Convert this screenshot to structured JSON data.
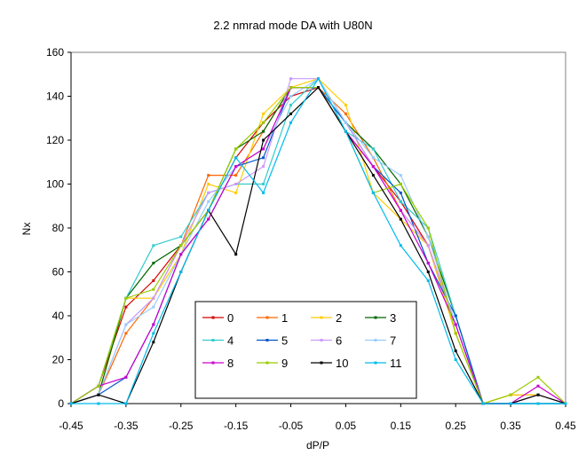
{
  "chart_data": {
    "type": "line",
    "title": "2.2 nmrad mode DA with U80N",
    "xlabel": "dP/P",
    "ylabel": "Nx",
    "xlim": [
      -0.45,
      0.45
    ],
    "ylim": [
      0,
      160
    ],
    "xticks": [
      "-0.45",
      "-0.35",
      "-0.25",
      "-0.15",
      "-0.05",
      "0.05",
      "0.15",
      "0.25",
      "0.35",
      "0.45"
    ],
    "yticks": [
      "0",
      "20",
      "40",
      "60",
      "80",
      "100",
      "120",
      "140",
      "160"
    ],
    "grid": false,
    "legend_position": "bottom-center",
    "x": [
      -0.45,
      -0.4,
      -0.35,
      -0.3,
      -0.25,
      -0.2,
      -0.15,
      -0.1,
      -0.05,
      0.0,
      0.05,
      0.1,
      0.15,
      0.2,
      0.25,
      0.3,
      0.35,
      0.4,
      0.45
    ],
    "series": [
      {
        "name": "0",
        "color": "#d40000",
        "values": [
          0,
          8,
          44,
          56,
          72,
          88,
          112,
          128,
          140,
          144,
          124,
          108,
          92,
          72,
          36,
          0,
          0,
          4,
          0
        ]
      },
      {
        "name": "1",
        "color": "#ff6600",
        "values": [
          0,
          4,
          32,
          48,
          72,
          104,
          104,
          124,
          144,
          144,
          132,
          112,
          88,
          72,
          32,
          0,
          4,
          4,
          0
        ]
      },
      {
        "name": "2",
        "color": "#ffcc00",
        "values": [
          0,
          4,
          48,
          48,
          68,
          100,
          96,
          132,
          144,
          148,
          136,
          96,
          84,
          72,
          32,
          0,
          4,
          4,
          0
        ]
      },
      {
        "name": "3",
        "color": "#006600",
        "values": [
          0,
          4,
          48,
          64,
          72,
          88,
          116,
          124,
          144,
          144,
          128,
          116,
          100,
          76,
          40,
          0,
          0,
          0,
          0
        ]
      },
      {
        "name": "4",
        "color": "#33cccc",
        "values": [
          0,
          8,
          48,
          72,
          76,
          96,
          100,
          100,
          136,
          148,
          124,
          116,
          92,
          80,
          40,
          0,
          0,
          0,
          0
        ]
      },
      {
        "name": "5",
        "color": "#0055cc",
        "values": [
          0,
          4,
          12,
          36,
          68,
          84,
          108,
          112,
          144,
          144,
          128,
          108,
          96,
          64,
          40,
          0,
          0,
          0,
          0
        ]
      },
      {
        "name": "6",
        "color": "#cc99ff",
        "values": [
          0,
          4,
          36,
          48,
          72,
          96,
          100,
          108,
          148,
          148,
          128,
          108,
          88,
          72,
          36,
          0,
          0,
          4,
          0
        ]
      },
      {
        "name": "7",
        "color": "#99ccff",
        "values": [
          0,
          4,
          36,
          44,
          68,
          92,
          108,
          116,
          140,
          148,
          128,
          112,
          104,
          76,
          36,
          0,
          0,
          4,
          0
        ]
      },
      {
        "name": "8",
        "color": "#cc00cc",
        "values": [
          0,
          8,
          12,
          36,
          68,
          84,
          108,
          116,
          144,
          144,
          124,
          108,
          88,
          64,
          36,
          0,
          0,
          8,
          0
        ]
      },
      {
        "name": "9",
        "color": "#99cc00",
        "values": [
          0,
          8,
          48,
          52,
          72,
          88,
          116,
          128,
          144,
          144,
          124,
          96,
          100,
          80,
          32,
          0,
          4,
          12,
          0
        ]
      },
      {
        "name": "10",
        "color": "#000000",
        "values": [
          0,
          4,
          0,
          28,
          60,
          88,
          68,
          120,
          132,
          144,
          124,
          104,
          84,
          60,
          24,
          0,
          0,
          4,
          0
        ]
      },
      {
        "name": "11",
        "color": "#00bbee",
        "values": [
          0,
          0,
          0,
          32,
          60,
          88,
          112,
          96,
          128,
          148,
          124,
          96,
          72,
          56,
          20,
          0,
          0,
          0,
          0
        ]
      }
    ]
  }
}
